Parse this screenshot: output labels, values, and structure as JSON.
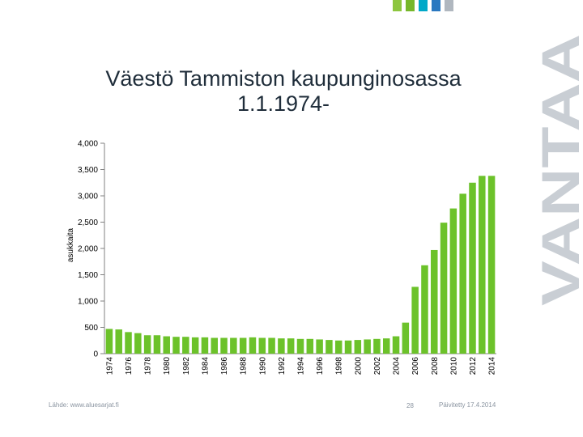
{
  "brand": {
    "name": "VANTAA",
    "color": "#c9ced4",
    "swatches": [
      "#8dc63f",
      "#76b72a",
      "#00a8c8",
      "#2a78c0",
      "#b0b7bf"
    ]
  },
  "title_line1": "Väestö Tammiston kaupunginosassa",
  "title_line2": "1.1.1974-",
  "footer": {
    "source": "Lähde: www.aluesarjat.fi",
    "page": "28",
    "updated": "Päivitetty 17.4.2014"
  },
  "chart_data": {
    "type": "bar",
    "ylabel": "asukkaita",
    "ylim": [
      0,
      4000
    ],
    "yticks": [
      0,
      500,
      1000,
      1500,
      2000,
      2500,
      3000,
      3500,
      4000
    ],
    "ytick_labels": [
      "0",
      "500",
      "1,000",
      "1,500",
      "2,000",
      "2,500",
      "3,000",
      "3,500",
      "4,000"
    ],
    "bar_color": "#6cc22a",
    "grid": false,
    "categories": [
      "1974",
      "1975",
      "1976",
      "1977",
      "1978",
      "1979",
      "1980",
      "1981",
      "1982",
      "1983",
      "1984",
      "1985",
      "1986",
      "1987",
      "1988",
      "1989",
      "1990",
      "1991",
      "1992",
      "1993",
      "1994",
      "1995",
      "1996",
      "1997",
      "1998",
      "1999",
      "2000",
      "2001",
      "2002",
      "2003",
      "2004",
      "2005",
      "2006",
      "2007",
      "2008",
      "2009",
      "2010",
      "2011",
      "2012",
      "2013",
      "2014"
    ],
    "xtick_labels": [
      "1974",
      "",
      "1976",
      "",
      "1978",
      "",
      "1980",
      "",
      "1982",
      "",
      "1984",
      "",
      "1986",
      "",
      "1988",
      "",
      "1990",
      "",
      "1992",
      "",
      "1994",
      "",
      "1996",
      "",
      "1998",
      "",
      "2000",
      "",
      "2002",
      "",
      "2004",
      "",
      "2006",
      "",
      "2008",
      "",
      "2010",
      "",
      "2012",
      "",
      "2014"
    ],
    "values": [
      470,
      460,
      410,
      390,
      350,
      350,
      330,
      320,
      320,
      310,
      310,
      300,
      300,
      300,
      300,
      310,
      300,
      300,
      290,
      290,
      280,
      280,
      270,
      260,
      250,
      250,
      260,
      270,
      280,
      290,
      330,
      590,
      1270,
      1680,
      1970,
      2490,
      2760,
      3040,
      3250,
      3380,
      3380
    ]
  }
}
